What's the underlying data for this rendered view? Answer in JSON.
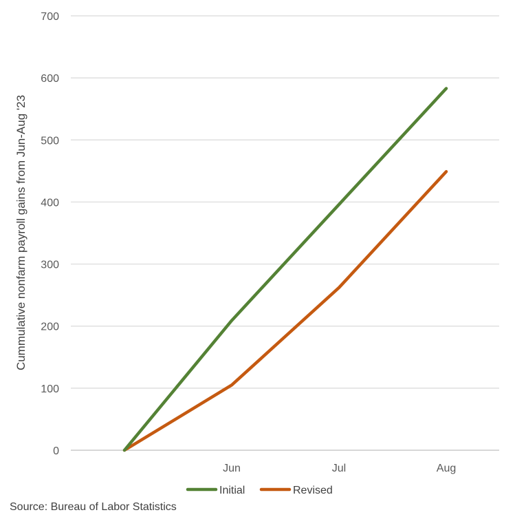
{
  "chart_data": {
    "type": "line",
    "title": "",
    "xlabel": "",
    "ylabel": "Cummulative nonfarm payroll gains from Jun-Aug '23",
    "categories": [
      "",
      "Jun",
      "Jul",
      "Aug"
    ],
    "ylim": [
      0,
      700
    ],
    "yticks": [
      0,
      100,
      200,
      300,
      400,
      500,
      600,
      700
    ],
    "grid": true,
    "legend_position": "bottom",
    "series": [
      {
        "name": "Initial",
        "color": "#548235",
        "values": [
          0,
          209,
          396,
          583
        ]
      },
      {
        "name": "Revised",
        "color": "#C55A11",
        "values": [
          0,
          105,
          262,
          449
        ]
      }
    ]
  },
  "source": "Source: Bureau of Labor Statistics"
}
